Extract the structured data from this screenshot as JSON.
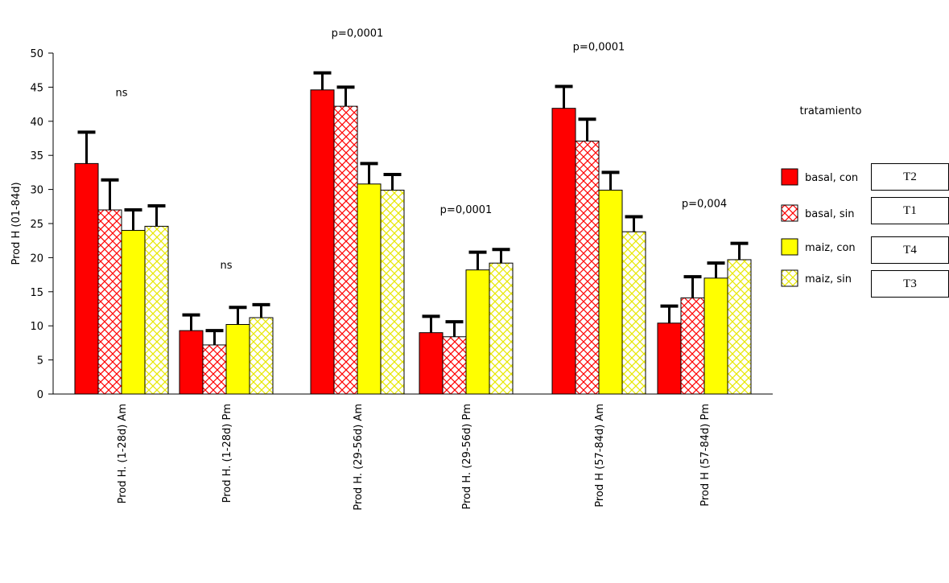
{
  "chart_data": {
    "type": "bar",
    "ylabel": "Prod H (01-84d)",
    "ylim": [
      0,
      50
    ],
    "yticks": [
      0,
      5,
      10,
      15,
      20,
      25,
      30,
      35,
      40,
      45,
      50
    ],
    "grid": false,
    "categories": [
      "Prod H. (1-28d)  Am",
      "Prod H. (1-28d)  Pm",
      "Prod H. (29-56d)  Am",
      "Prod H. (29-56d)  Pm",
      "Prod H (57-84d)  Am",
      "Prod H (57-84d)  Pm"
    ],
    "series": [
      {
        "name": "basal, con",
        "color": "#ff0000",
        "pattern": "solid",
        "values": [
          33.8,
          9.3,
          44.6,
          9.0,
          41.9,
          10.4
        ],
        "errors": [
          4.6,
          2.3,
          2.5,
          2.4,
          3.2,
          2.5
        ]
      },
      {
        "name": "basal, sin",
        "color": "#ff0000",
        "pattern": "crosshatch",
        "values": [
          27.0,
          7.2,
          42.2,
          8.4,
          37.1,
          14.1
        ],
        "errors": [
          4.4,
          2.1,
          2.8,
          2.2,
          3.2,
          3.1
        ]
      },
      {
        "name": "maiz, con",
        "color": "#ffff00",
        "pattern": "solid",
        "values": [
          24.0,
          10.2,
          30.8,
          18.2,
          29.9,
          17.0
        ],
        "errors": [
          3.0,
          2.5,
          3.0,
          2.6,
          2.6,
          2.2
        ]
      },
      {
        "name": "maiz, sin",
        "color": "#ffff00",
        "pattern": "crosshatch",
        "values": [
          24.6,
          11.2,
          29.9,
          19.2,
          23.8,
          19.7
        ],
        "errors": [
          3.0,
          1.9,
          2.3,
          2.0,
          2.2,
          2.4
        ]
      }
    ],
    "annotations": [
      "ns",
      "ns",
      "p=0,0001",
      "p=0,0001",
      "p=0,0001",
      "p=0,004"
    ],
    "legend_title": "tratamiento",
    "legend_placement": "right"
  },
  "treatment_codes": [
    "T2",
    "T1",
    "T4",
    "T3"
  ]
}
